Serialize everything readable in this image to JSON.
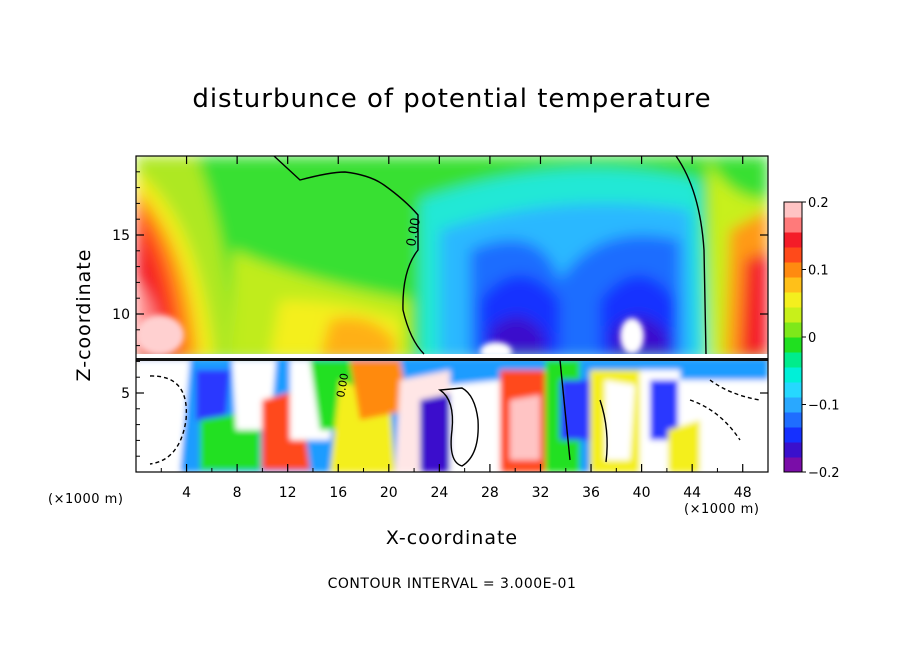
{
  "chart_data": {
    "type": "heatmap",
    "title": "disturbunce of potential temperature",
    "xlabel": "X-coordinate",
    "ylabel": "Z-coordinate",
    "x_unit": "(×1000 m)",
    "x_unit_right": "(×1000 m)",
    "xlim": [
      0,
      50
    ],
    "ylim": [
      0,
      20
    ],
    "x_ticks": [
      4,
      8,
      12,
      16,
      20,
      24,
      28,
      32,
      36,
      40,
      44,
      48
    ],
    "y_ticks": [
      5,
      10,
      15
    ],
    "colorbar": {
      "range": [
        -0.2,
        0.2
      ],
      "tick_values": [
        0.2,
        0.1,
        0,
        -0.1,
        -0.2
      ],
      "tick_labels": [
        "0.2",
        "0.1",
        "0",
        "−0.1",
        "−0.2"
      ],
      "colors": [
        "#7a0da8",
        "#3a10cc",
        "#1530ff",
        "#1f6dff",
        "#29a8ff",
        "#26d8ff",
        "#00f0d8",
        "#00ec8c",
        "#20e020",
        "#7ee81a",
        "#c8f01a",
        "#f4ef1e",
        "#ffc019",
        "#ff8a10",
        "#ff4a1a",
        "#f41c28",
        "#ff7a7a",
        "#ffc4c4"
      ]
    },
    "contour_labels": [
      "0.00",
      "0.00"
    ],
    "contour_interval": "CONTOUR INTERVAL = 3.000E-01",
    "grid": false
  }
}
